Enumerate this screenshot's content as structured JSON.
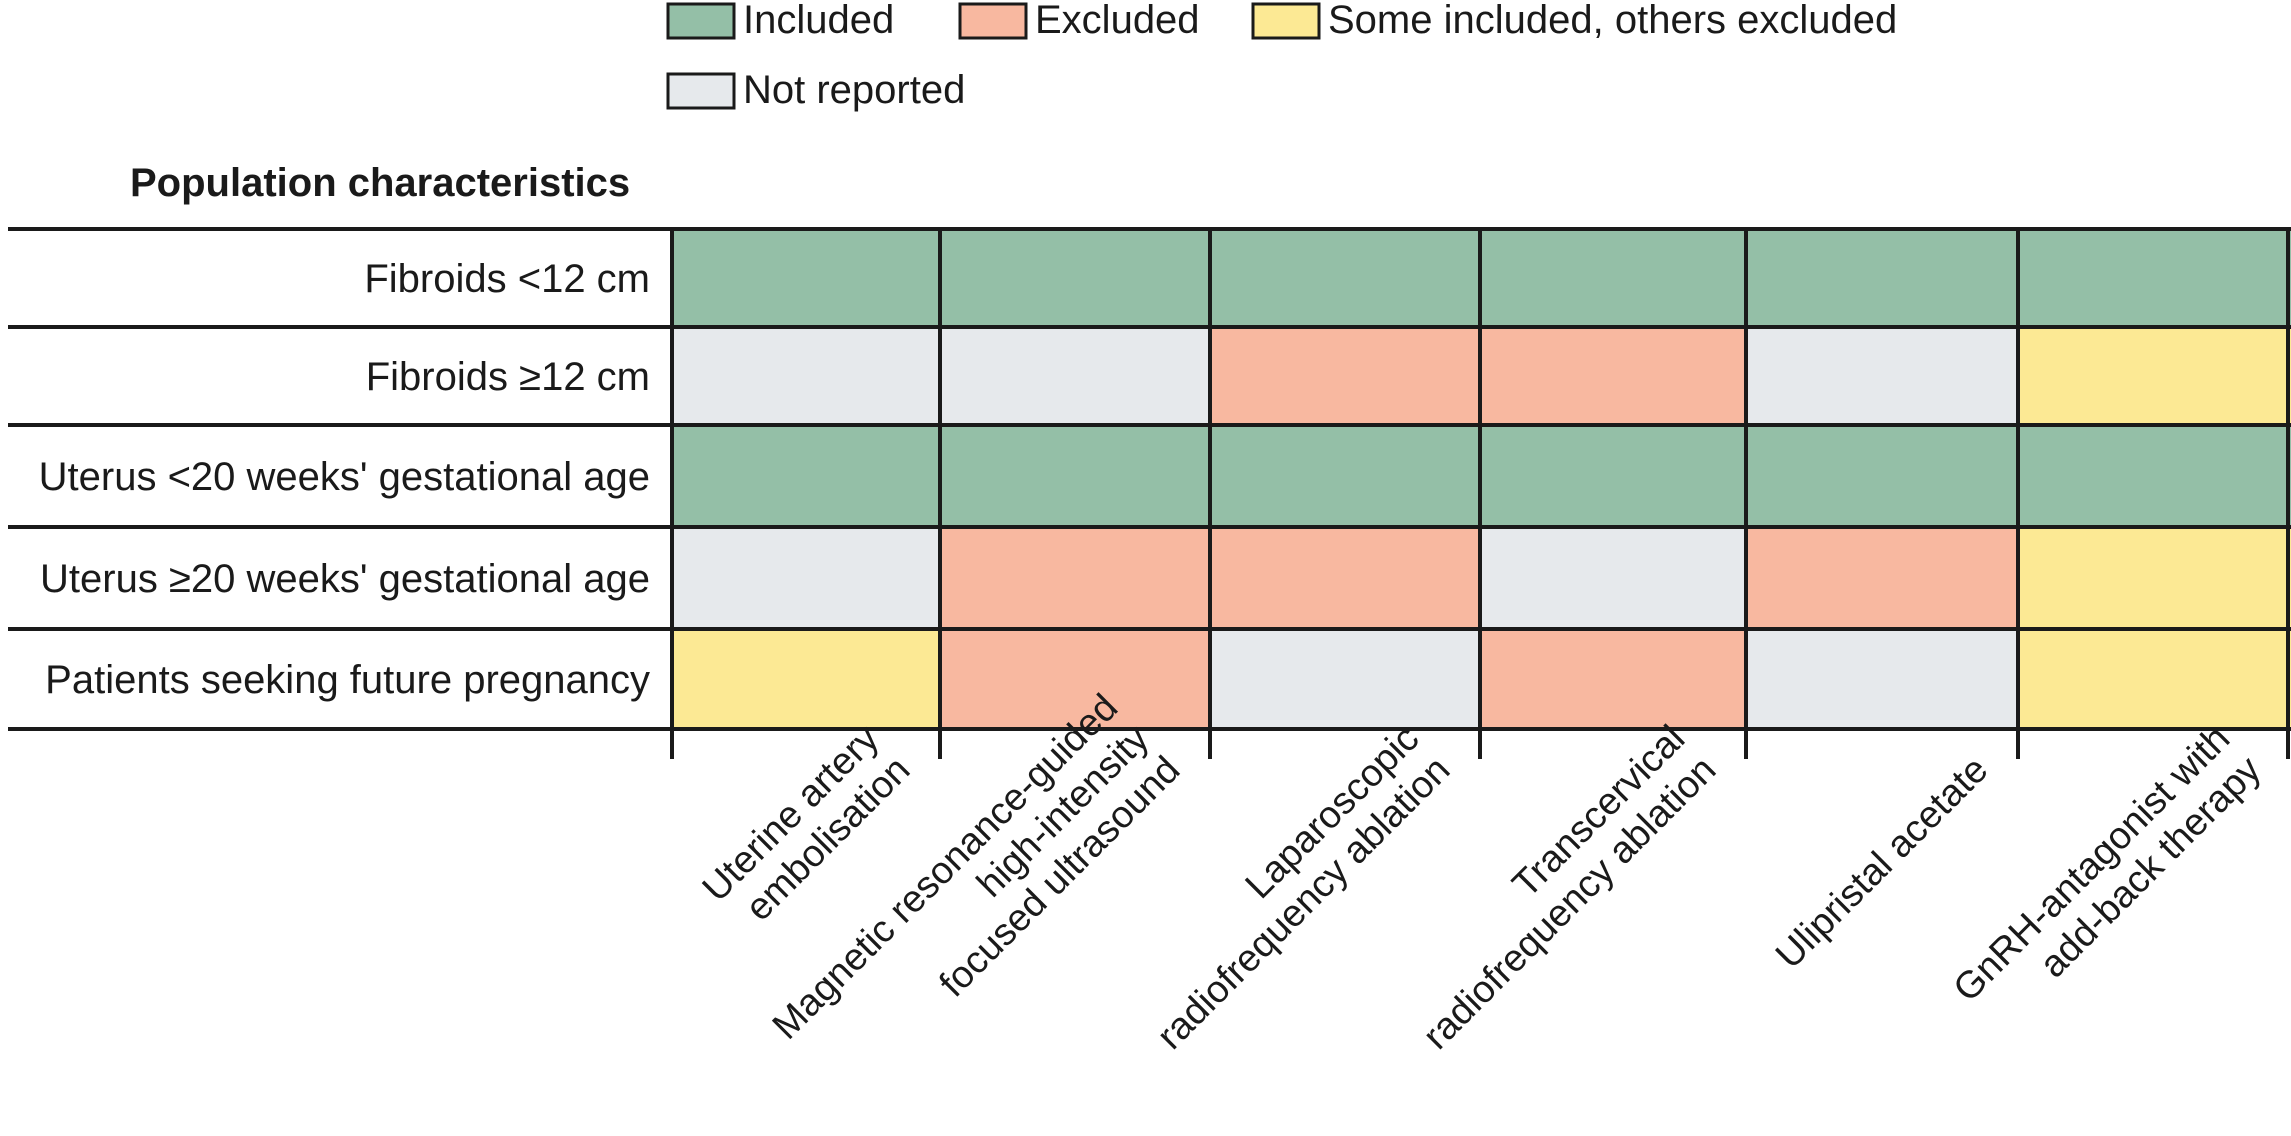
{
  "chart_data": {
    "type": "heatmap",
    "header": "Population characteristics",
    "legend": [
      {
        "key": "included",
        "label": "Included",
        "color": "#94bfa7"
      },
      {
        "key": "excluded",
        "label": "Excluded",
        "color": "#f8b8a0"
      },
      {
        "key": "some",
        "label": "Some included, others excluded",
        "color": "#fce994"
      },
      {
        "key": "nr",
        "label": "Not reported",
        "color": "#e6e9ec"
      }
    ],
    "rows": [
      "Fibroids <12 cm",
      "Fibroids ≥12 cm",
      "Uterus <20 weeks' gestational age",
      "Uterus ≥20 weeks' gestational age",
      "Patients seeking future pregnancy"
    ],
    "columns": [
      [
        "Uterine artery",
        "embolisation"
      ],
      [
        "Magnetic resonance-guided",
        "high-intensity",
        "focused ultrasound"
      ],
      [
        "Laparoscopic",
        "radiofrequency ablation"
      ],
      [
        "Transcervical",
        "radiofrequency ablation"
      ],
      [
        "Ulipristal acetate"
      ],
      [
        "GnRH-antagonist with",
        "add-back therapy"
      ]
    ],
    "values": [
      [
        "included",
        "included",
        "included",
        "included",
        "included",
        "included"
      ],
      [
        "nr",
        "nr",
        "excluded",
        "excluded",
        "nr",
        "some"
      ],
      [
        "included",
        "included",
        "included",
        "included",
        "included",
        "included"
      ],
      [
        "nr",
        "excluded",
        "excluded",
        "nr",
        "excluded",
        "some"
      ],
      [
        "some",
        "excluded",
        "nr",
        "excluded",
        "nr",
        "some"
      ]
    ]
  }
}
